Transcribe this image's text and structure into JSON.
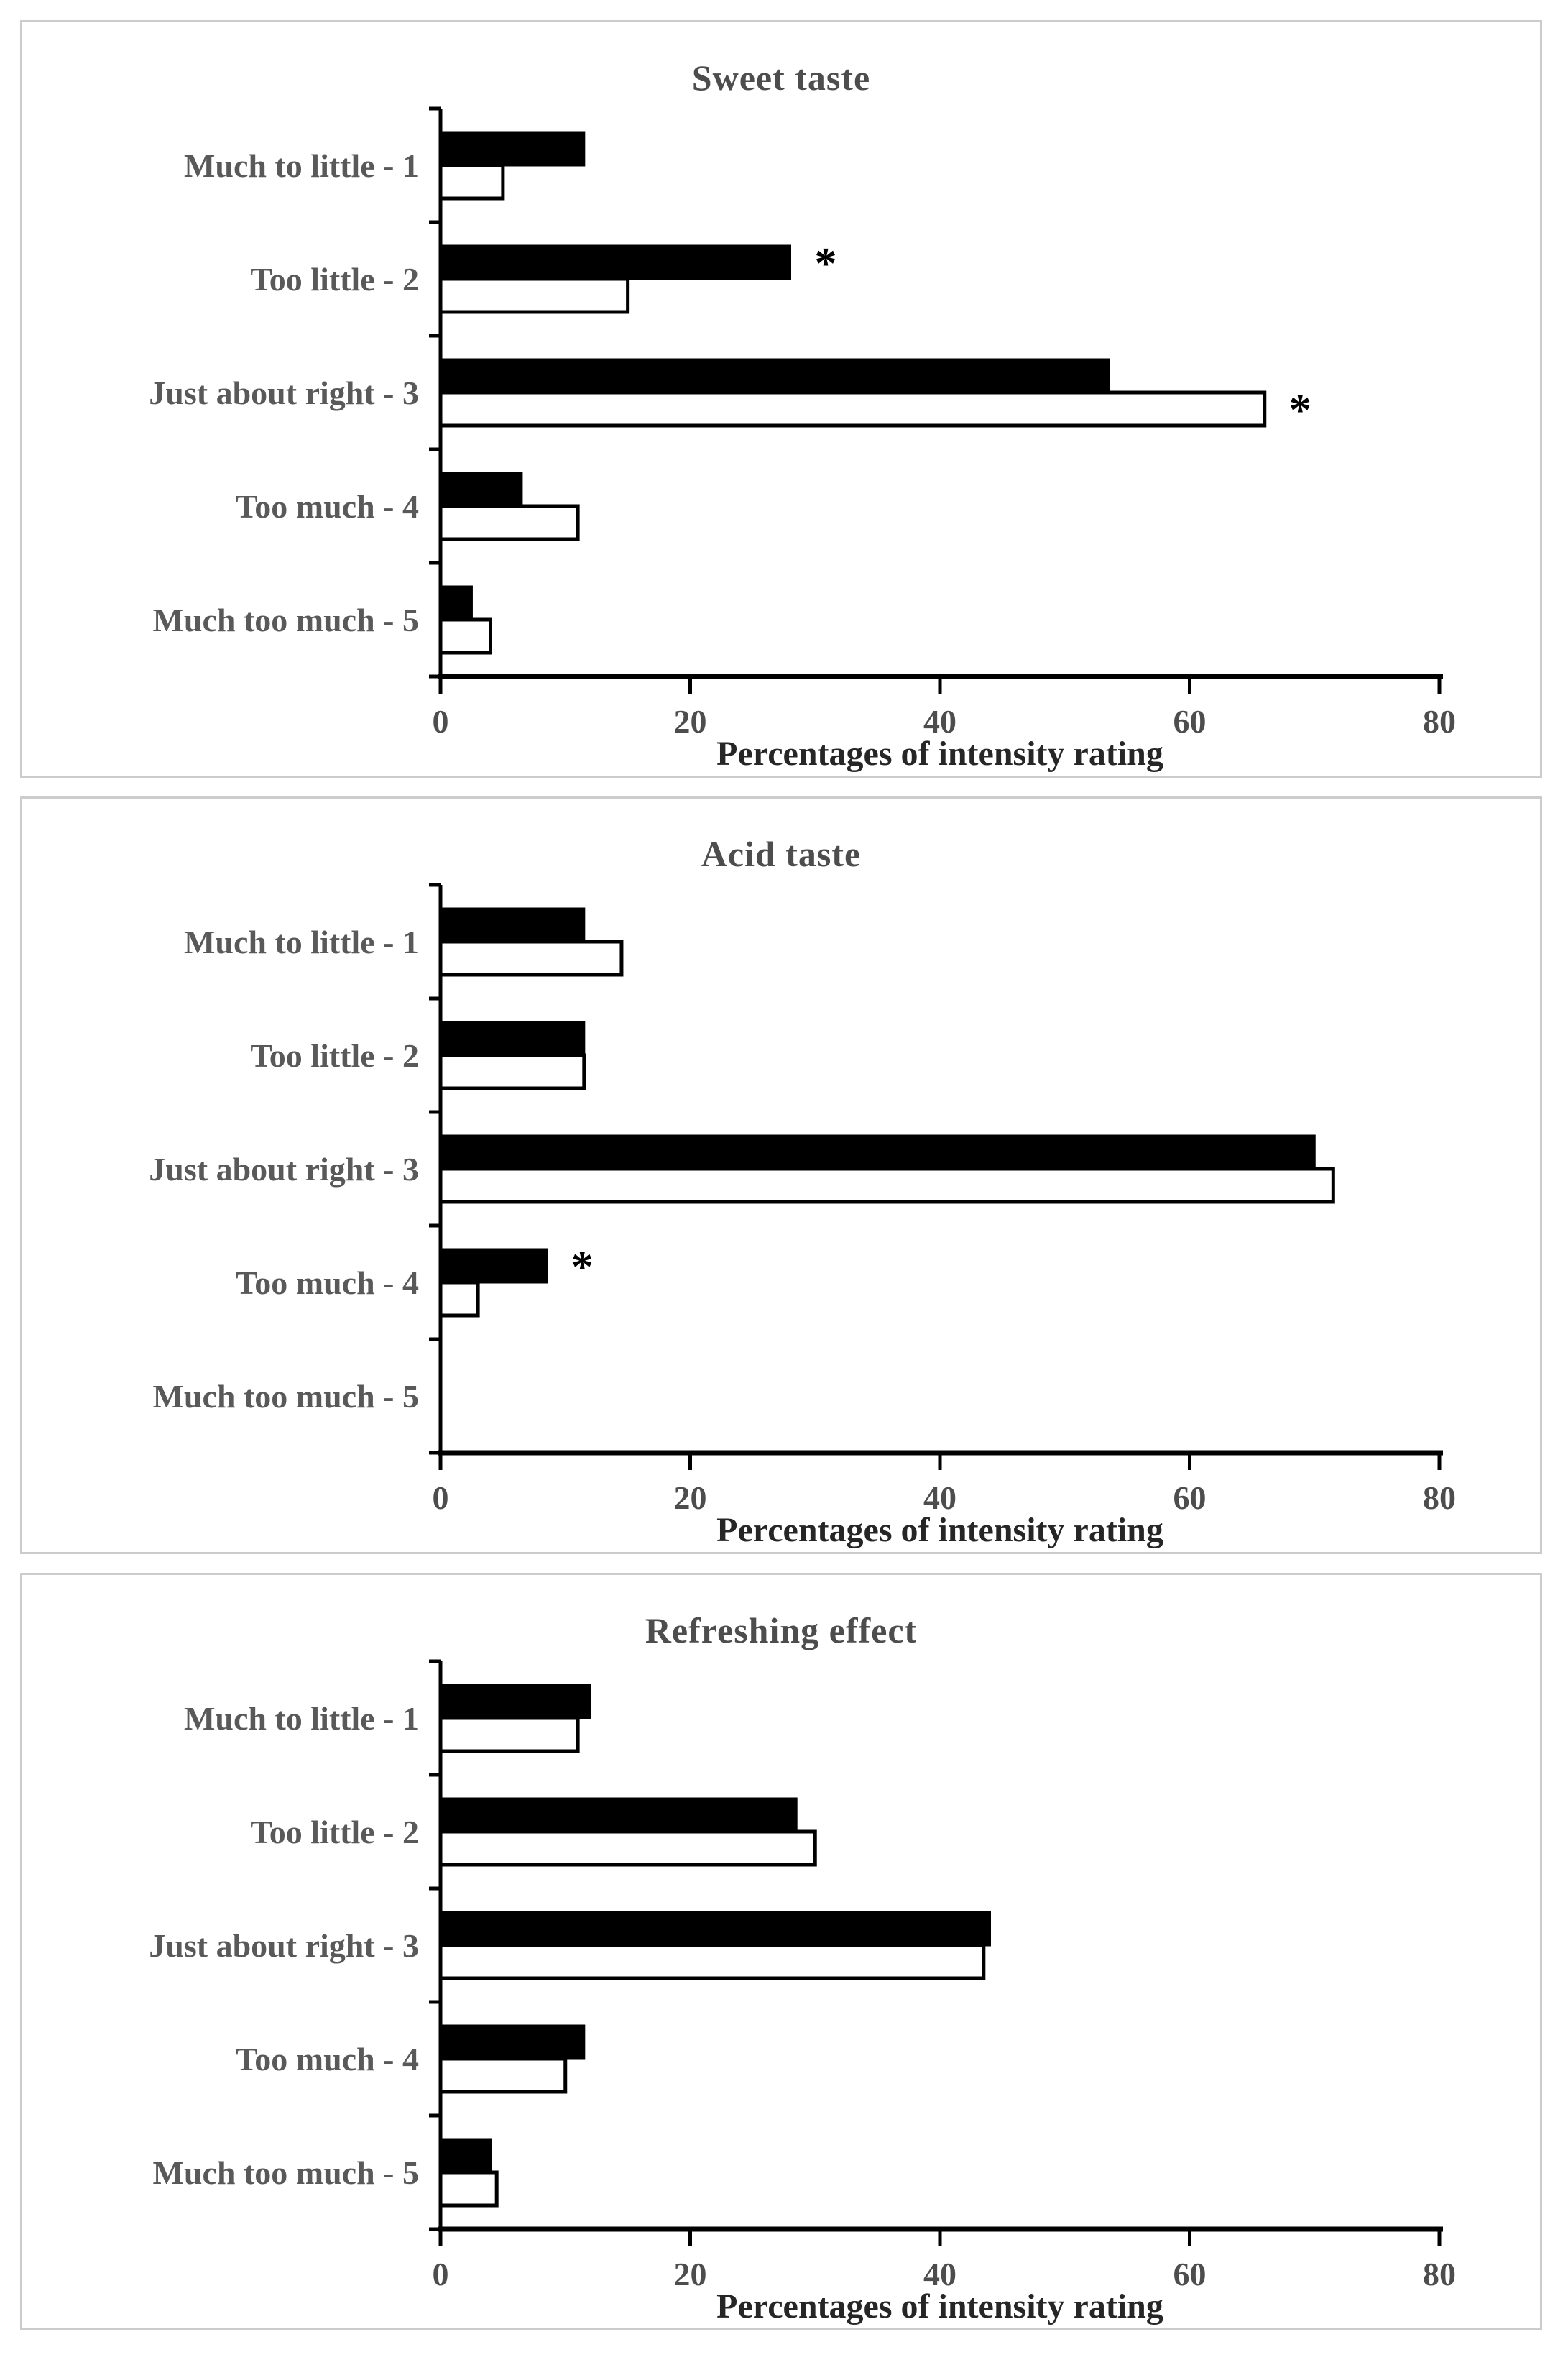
{
  "style": {
    "background": "#ffffff",
    "panel_border": "#cccccc",
    "axis_color": "#000000",
    "bar_stroke": "#000000",
    "bar_fill_black": "#000000",
    "bar_fill_white": "#ffffff",
    "title_color": "#4d4d4d",
    "category_label_color": "#595959",
    "tick_label_color": "#4d4d4d",
    "axis_label_color": "#262626"
  },
  "chart_data": [
    {
      "type": "bar",
      "orientation": "horizontal",
      "title": "Sweet taste",
      "xlabel": "Percentages of intensity rating",
      "xlim": [
        0,
        80
      ],
      "xticks": [
        0,
        20,
        40,
        60,
        80
      ],
      "grid": false,
      "legend": "none",
      "categories": [
        "Much to little - 1",
        "Too little - 2",
        "Just about right - 3",
        "Too much - 4",
        "Much too much - 5"
      ],
      "series": [
        {
          "name": "filled-black-bar",
          "color": "#000000",
          "values": [
            11.5,
            28,
            53.5,
            6.5,
            2.5
          ],
          "significance": [
            "",
            "*",
            "",
            "",
            ""
          ]
        },
        {
          "name": "open-white-bar",
          "color": "#ffffff",
          "values": [
            5,
            15,
            66,
            11,
            4
          ],
          "significance": [
            "",
            "",
            "*",
            "",
            ""
          ]
        }
      ]
    },
    {
      "type": "bar",
      "orientation": "horizontal",
      "title": "Acid taste",
      "xlabel": "Percentages of intensity rating",
      "xlim": [
        0,
        80
      ],
      "xticks": [
        0,
        20,
        40,
        60,
        80
      ],
      "grid": false,
      "legend": "none",
      "categories": [
        "Much to little - 1",
        "Too little - 2",
        "Just about right - 3",
        "Too much - 4",
        "Much too much - 5"
      ],
      "series": [
        {
          "name": "filled-black-bar",
          "color": "#000000",
          "values": [
            11.5,
            11.5,
            70,
            8.5,
            0
          ],
          "significance": [
            "",
            "",
            "",
            "*",
            ""
          ]
        },
        {
          "name": "open-white-bar",
          "color": "#ffffff",
          "values": [
            14.5,
            11.5,
            71.5,
            3,
            0
          ],
          "significance": [
            "",
            "",
            "",
            "",
            ""
          ]
        }
      ]
    },
    {
      "type": "bar",
      "orientation": "horizontal",
      "title": "Refreshing effect",
      "xlabel": "Percentages of intensity rating",
      "xlim": [
        0,
        80
      ],
      "xticks": [
        0,
        20,
        40,
        60,
        80
      ],
      "grid": false,
      "legend": "none",
      "categories": [
        "Much to little - 1",
        "Too little - 2",
        "Just about right - 3",
        "Too much - 4",
        "Much too much - 5"
      ],
      "series": [
        {
          "name": "filled-black-bar",
          "color": "#000000",
          "values": [
            12,
            28.5,
            44,
            11.5,
            4
          ],
          "significance": [
            "",
            "",
            "",
            "",
            ""
          ]
        },
        {
          "name": "open-white-bar",
          "color": "#ffffff",
          "values": [
            11,
            30,
            43.5,
            10,
            4.5
          ],
          "significance": [
            "",
            "",
            "",
            "",
            ""
          ]
        }
      ]
    }
  ]
}
